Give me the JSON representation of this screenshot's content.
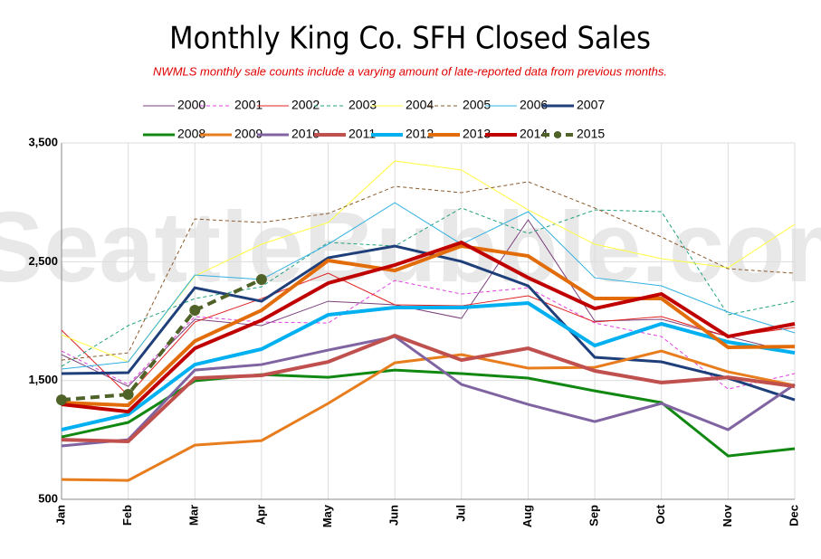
{
  "chart_data": {
    "type": "line",
    "title": "Monthly King Co. SFH Closed Sales",
    "subtitle": "NWMLS monthly sale counts include a varying amount of late-reported  data from previous months.",
    "watermark": "SeattleBubble.com",
    "categories": [
      "Jan",
      "Feb",
      "Mar",
      "Apr",
      "May",
      "Jun",
      "Jul",
      "Aug",
      "Sep",
      "Oct",
      "Nov",
      "Dec"
    ],
    "ylim": [
      500,
      3500
    ],
    "yticks": [
      500,
      {
        "value": 1500,
        "label": "1,500"
      },
      {
        "value": 2500,
        "label": "2,500"
      },
      {
        "value": 3500,
        "label": "3,500"
      }
    ],
    "grid": true,
    "series": [
      {
        "name": "2000",
        "color": "#7b3f7b",
        "line_width": 1,
        "dashed": false,
        "values": [
          1718,
          1451,
          2015,
          1962,
          2167,
          2137,
          2023,
          2853,
          2000,
          2015,
          1870,
          1733
        ]
      },
      {
        "name": "2001",
        "color": "#e040e0",
        "line_width": 1,
        "dashed": true,
        "values": [
          1748,
          1467,
          2038,
          1992,
          1984,
          2342,
          2228,
          2281,
          1984,
          1870,
          1428,
          1558
        ]
      },
      {
        "name": "2002",
        "color": "#e02020",
        "line_width": 1,
        "dashed": false,
        "values": [
          1924,
          1375,
          1992,
          2190,
          2403,
          2137,
          2129,
          2213,
          1992,
          2038,
          1870,
          1946
        ]
      },
      {
        "name": "2003",
        "color": "#20a080",
        "line_width": 1,
        "dashed": true,
        "values": [
          1619,
          1962,
          2190,
          2289,
          2662,
          2632,
          2952,
          2738,
          2936,
          2921,
          2053,
          2167
        ]
      },
      {
        "name": "2004",
        "color": "#ffff40",
        "line_width": 1,
        "dashed": false,
        "values": [
          1885,
          1657,
          2380,
          2647,
          2830,
          3348,
          3272,
          2936,
          2647,
          2525,
          2449,
          2815
        ]
      },
      {
        "name": "2005",
        "color": "#8b5a2b",
        "line_width": 1,
        "dashed": true,
        "values": [
          1672,
          1733,
          2860,
          2830,
          2906,
          3134,
          3081,
          3173,
          2952,
          2708,
          2441,
          2403
        ]
      },
      {
        "name": "2006",
        "color": "#30b0e0",
        "line_width": 1,
        "dashed": false,
        "values": [
          1596,
          1657,
          2388,
          2350,
          2647,
          2997,
          2647,
          2921,
          2365,
          2297,
          2076,
          1901
        ]
      },
      {
        "name": "2007",
        "color": "#1f3f7a",
        "line_width": 3,
        "dashed": false,
        "values": [
          1558,
          1566,
          2281,
          2167,
          2533,
          2632,
          2502,
          2297,
          1695,
          1657,
          1520,
          1337
        ]
      },
      {
        "name": "2008",
        "color": "#118811",
        "line_width": 3,
        "dashed": false,
        "values": [
          1025,
          1147,
          1497,
          1550,
          1527,
          1588,
          1558,
          1520,
          1413,
          1314,
          865,
          926
        ]
      },
      {
        "name": "2009",
        "color": "#e87d1e",
        "line_width": 3,
        "dashed": false,
        "values": [
          667,
          659,
          956,
          994,
          1307,
          1649,
          1718,
          1604,
          1611,
          1748,
          1573,
          1459
        ]
      },
      {
        "name": "2010",
        "color": "#8064a2",
        "line_width": 3,
        "dashed": false,
        "values": [
          949,
          1002,
          1588,
          1634,
          1756,
          1870,
          1467,
          1299,
          1154,
          1307,
          1086,
          1467
        ]
      },
      {
        "name": "2011",
        "color": "#c0504d",
        "line_width": 4,
        "dashed": false,
        "values": [
          1002,
          987,
          1520,
          1543,
          1657,
          1878,
          1672,
          1771,
          1581,
          1482,
          1527,
          1451
        ]
      },
      {
        "name": "2012",
        "color": "#00b0f0",
        "line_width": 4,
        "dashed": false,
        "values": [
          1086,
          1215,
          1634,
          1764,
          2053,
          2114,
          2114,
          2152,
          1794,
          1977,
          1824,
          1733
        ]
      },
      {
        "name": "2013",
        "color": "#e36c0a",
        "line_width": 4,
        "dashed": false,
        "values": [
          1314,
          1291,
          1832,
          2091,
          2510,
          2426,
          2632,
          2548,
          2190,
          2190,
          1779,
          1786
        ]
      },
      {
        "name": "2014",
        "color": "#c00000",
        "line_width": 4,
        "dashed": false,
        "values": [
          1299,
          1238,
          1771,
          2007,
          2320,
          2472,
          2662,
          2365,
          2106,
          2228,
          1870,
          1977
        ]
      },
      {
        "name": "2015",
        "color": "#4f6228",
        "line_width": 4,
        "dashed": true,
        "marker": true,
        "values": [
          1337,
          1383,
          2091,
          2350,
          null,
          null,
          null,
          null,
          null,
          null,
          null,
          null
        ]
      }
    ]
  }
}
